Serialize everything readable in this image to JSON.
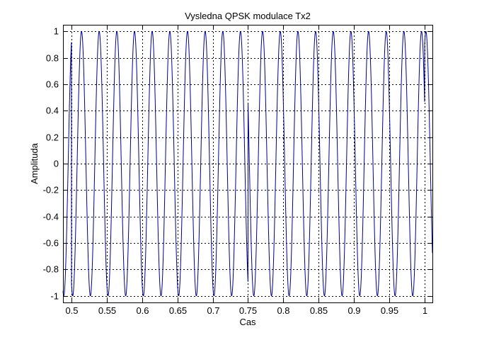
{
  "chart_data": {
    "type": "line",
    "title": "Vysledna QPSK modulace Tx2",
    "xlabel": "Cas",
    "ylabel": "Amplituda",
    "xlim": [
      0.488,
      1.011
    ],
    "ylim": [
      -1.05,
      1.05
    ],
    "grid": true,
    "xticks": [
      0.5,
      0.55,
      0.6,
      0.65,
      0.7,
      0.75,
      0.8,
      0.85,
      0.9,
      0.95,
      1
    ],
    "xtick_labels": [
      "0.5",
      "0.55",
      "0.6",
      "0.65",
      "0.7",
      "0.75",
      "0.8",
      "0.85",
      "0.9",
      "0.95",
      "1"
    ],
    "yticks": [
      -1,
      -0.8,
      -0.6,
      -0.4,
      -0.2,
      0,
      0.2,
      0.4,
      0.6,
      0.8,
      1
    ],
    "ytick_labels": [
      "-1",
      "-0.8",
      "-0.6",
      "-0.4",
      "-0.2",
      "0",
      "0.2",
      "0.4",
      "0.6",
      "0.8",
      "1"
    ],
    "series": [
      {
        "color": "#00008b",
        "signal": "cos(2*pi*40*t + phase)",
        "frequency_hz": 40,
        "segments": [
          {
            "t_start": 0.488,
            "t_end": 0.5,
            "phase_rad": -0.4
          },
          {
            "t_start": 0.5,
            "t_end": 0.75,
            "phase_rad": 2.7
          },
          {
            "t_start": 0.75,
            "t_end": 1.0,
            "phase_rad": 1.1
          },
          {
            "t_start": 1.0,
            "t_end": 1.011,
            "phase_rad": -0.45
          }
        ]
      }
    ]
  }
}
